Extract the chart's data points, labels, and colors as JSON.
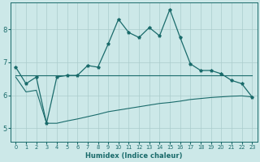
{
  "xlabel": "Humidex (Indice chaleur)",
  "background_color": "#cce8e8",
  "line_color": "#1a6b6b",
  "grid_color": "#aacccc",
  "xlim": [
    -0.5,
    23.5
  ],
  "ylim": [
    4.6,
    8.8
  ],
  "xticks": [
    0,
    1,
    2,
    3,
    4,
    5,
    6,
    7,
    8,
    9,
    10,
    11,
    12,
    13,
    14,
    15,
    16,
    17,
    18,
    19,
    20,
    21,
    22,
    23
  ],
  "yticks": [
    5,
    6,
    7,
    8
  ],
  "x": [
    0,
    1,
    2,
    3,
    4,
    5,
    6,
    7,
    8,
    9,
    10,
    11,
    12,
    13,
    14,
    15,
    16,
    17,
    18,
    19,
    20,
    21,
    22,
    23
  ],
  "y_main": [
    6.85,
    6.35,
    6.55,
    5.15,
    6.55,
    6.6,
    6.6,
    6.9,
    6.85,
    7.55,
    8.3,
    7.9,
    7.75,
    8.05,
    7.8,
    8.6,
    7.75,
    6.95,
    6.75,
    6.75,
    6.65,
    6.45,
    6.35,
    5.95
  ],
  "y_flat": [
    6.6,
    6.6,
    6.6,
    6.6,
    6.6,
    6.6,
    6.6,
    6.6,
    6.6,
    6.6,
    6.6,
    6.6,
    6.6,
    6.6,
    6.6,
    6.6,
    6.6,
    6.6,
    6.6,
    6.6,
    6.6,
    6.6,
    6.6,
    6.6
  ],
  "y_lower": [
    6.55,
    6.1,
    6.15,
    5.15,
    5.15,
    5.22,
    5.28,
    5.35,
    5.42,
    5.5,
    5.55,
    5.6,
    5.65,
    5.7,
    5.75,
    5.78,
    5.82,
    5.87,
    5.9,
    5.93,
    5.95,
    5.97,
    5.98,
    5.95
  ],
  "xlabel_fontsize": 6.0,
  "xtick_fontsize": 4.8,
  "ytick_fontsize": 6.0
}
